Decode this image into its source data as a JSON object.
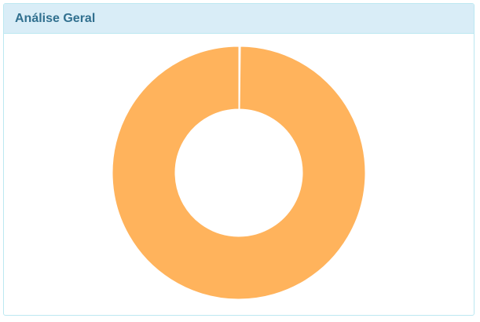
{
  "panel": {
    "title": "Análise Geral"
  },
  "chart_data": {
    "type": "pie",
    "variant": "donut",
    "title": "",
    "slices": [
      {
        "value": 0.2,
        "color": "#ffffff"
      },
      {
        "value": 99.8,
        "color": "#ffb35c"
      }
    ],
    "legend": "none"
  }
}
